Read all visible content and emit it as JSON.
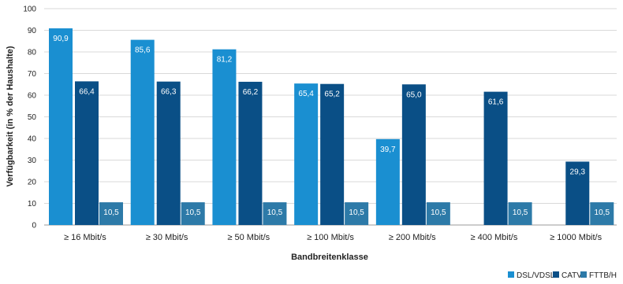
{
  "chart_data": {
    "type": "bar",
    "title": "",
    "xlabel": "Bandbreitenklasse",
    "ylabel": "Verfügbarkeit (in % der Haushalte)",
    "ylim": [
      0,
      100
    ],
    "yticks": [
      0,
      10,
      20,
      30,
      40,
      50,
      60,
      70,
      80,
      90,
      100
    ],
    "grid": true,
    "legend_position": "bottom-right",
    "categories": [
      "≥ 16 Mbit/s",
      "≥ 30 Mbit/s",
      "≥ 50 Mbit/s",
      "≥ 100 Mbit/s",
      "≥ 200 Mbit/s",
      "≥ 400 Mbit/s",
      "≥ 1000 Mbit/s"
    ],
    "series": [
      {
        "name": "DSL/VDSL",
        "color": "#1a8fd1",
        "values": [
          90.9,
          85.6,
          81.2,
          65.4,
          39.7,
          null,
          null
        ],
        "labels": [
          "90,9",
          "85,6",
          "81,2",
          "65,4",
          "39,7",
          "",
          ""
        ]
      },
      {
        "name": "CATV",
        "color": "#0a4f86",
        "values": [
          66.4,
          66.3,
          66.2,
          65.2,
          65.0,
          61.6,
          29.3
        ],
        "labels": [
          "66,4",
          "66,3",
          "66,2",
          "65,2",
          "65,0",
          "61,6",
          "29,3"
        ]
      },
      {
        "name": "FTTB/H",
        "color": "#2d7aa8",
        "values": [
          10.5,
          10.5,
          10.5,
          10.5,
          10.5,
          10.5,
          10.5
        ],
        "labels": [
          "10,5",
          "10,5",
          "10,5",
          "10,5",
          "10,5",
          "10,5",
          "10,5"
        ]
      }
    ]
  }
}
